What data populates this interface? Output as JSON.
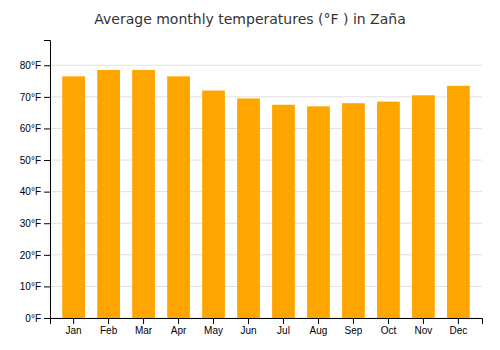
{
  "chart_data": {
    "type": "bar",
    "title": "Average monthly temperatures (°F ) in Zaña",
    "categories": [
      "Jan",
      "Feb",
      "Mar",
      "Apr",
      "May",
      "Jun",
      "Jul",
      "Aug",
      "Sep",
      "Oct",
      "Nov",
      "Dec"
    ],
    "values": [
      76.5,
      78.5,
      78.5,
      76.5,
      72,
      69.5,
      67.5,
      67,
      68,
      68.5,
      70.5,
      73.5
    ],
    "color": "#FFA500",
    "ylim": [
      0,
      88
    ],
    "yticks": [
      {
        "value": 0,
        "label": "0°F"
      },
      {
        "value": 10,
        "label": "10°F"
      },
      {
        "value": 20,
        "label": "20°F"
      },
      {
        "value": 30,
        "label": "30°F"
      },
      {
        "value": 40,
        "label": "40°F"
      },
      {
        "value": 50,
        "label": "50°F"
      },
      {
        "value": 60,
        "label": "60°F"
      },
      {
        "value": 70,
        "label": "70°F"
      },
      {
        "value": 80,
        "label": "80°F"
      }
    ],
    "grid": true
  }
}
